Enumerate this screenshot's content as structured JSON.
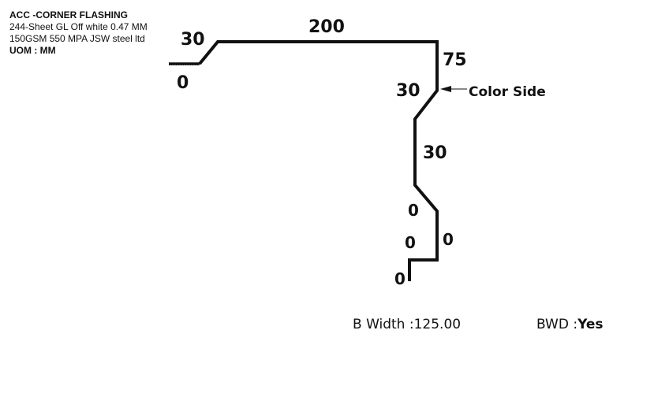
{
  "info": {
    "title": "ACC -CORNER FLASHING",
    "description": "244-Sheet GL Off white 0.47 MM 150GSM 550 MPA JSW steel ltd",
    "uom": "UOM : MM"
  },
  "dimensions": {
    "top_length": "200",
    "left_angle": "30",
    "left_start": "0",
    "right_drop": "75",
    "slant_upper": "30",
    "mid_vertical": "30",
    "slant_lower": "0",
    "lower_left": "0",
    "lower_right": "0",
    "bottom": "0"
  },
  "callout": {
    "label": "Color Side"
  },
  "footer": {
    "b_width_label": "B Width :",
    "b_width_value": "125.00",
    "bwd_label": "BWD :",
    "bwd_value": "Yes"
  }
}
